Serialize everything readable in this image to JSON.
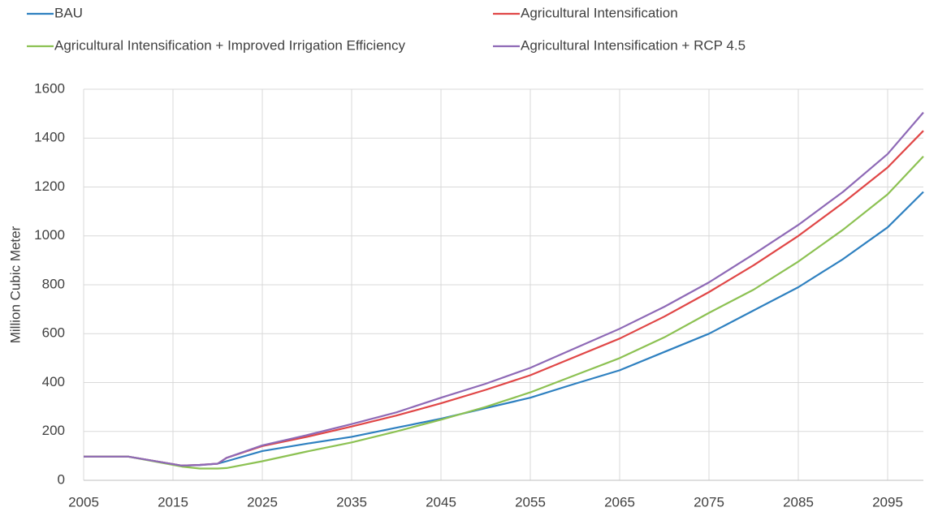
{
  "chart_data": {
    "type": "line",
    "y_label": "Million Cubic Meter",
    "x": [
      2005,
      2010,
      2016,
      2018,
      2020,
      2021,
      2025,
      2030,
      2035,
      2040,
      2045,
      2050,
      2055,
      2060,
      2065,
      2070,
      2075,
      2080,
      2085,
      2090,
      2095,
      2099
    ],
    "series": [
      {
        "name": "BAU",
        "color": "#2e80c0",
        "values": [
          97,
          97,
          60,
          62,
          68,
          78,
          120,
          150,
          178,
          215,
          252,
          295,
          338,
          395,
          450,
          525,
          600,
          695,
          790,
          905,
          1035,
          1180
        ]
      },
      {
        "name": "Agricultural Intensification",
        "color": "#e04646",
        "values": [
          97,
          97,
          60,
          63,
          68,
          92,
          140,
          178,
          220,
          265,
          315,
          370,
          430,
          505,
          580,
          670,
          770,
          880,
          1000,
          1135,
          1280,
          1430
        ]
      },
      {
        "name": "Agricultural Intensification + Improved Irrigation Efficiency",
        "color": "#8cc152",
        "values": [
          97,
          97,
          56,
          48,
          48,
          50,
          78,
          118,
          155,
          200,
          248,
          300,
          360,
          430,
          500,
          585,
          685,
          780,
          895,
          1025,
          1170,
          1325
        ]
      },
      {
        "name": "Agricultural Intensification + RCP 4.5",
        "color": "#8e69b6",
        "values": [
          97,
          97,
          60,
          63,
          68,
          92,
          143,
          185,
          230,
          278,
          338,
          395,
          460,
          540,
          620,
          710,
          810,
          925,
          1045,
          1180,
          1335,
          1505
        ]
      }
    ],
    "xlim": [
      2005,
      2099
    ],
    "xticks": [
      2005,
      2015,
      2025,
      2035,
      2045,
      2055,
      2065,
      2075,
      2085,
      2095
    ],
    "ylim": [
      0,
      1600
    ],
    "yticks": [
      0,
      200,
      400,
      600,
      800,
      1000,
      1200,
      1400,
      1600
    ],
    "grid": true
  }
}
